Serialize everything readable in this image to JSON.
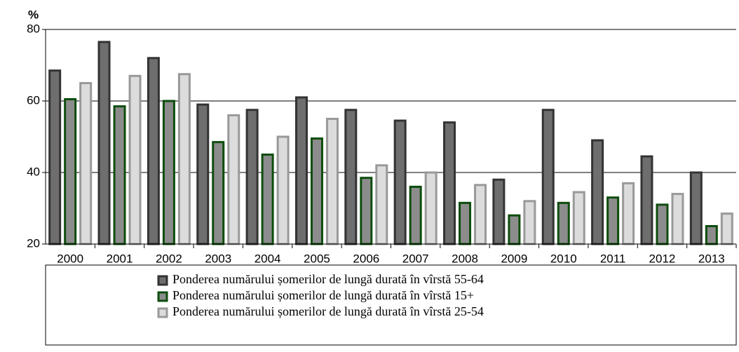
{
  "chart_data": {
    "type": "bar",
    "y_label": "%",
    "categories": [
      "2000",
      "2001",
      "2002",
      "2003",
      "2004",
      "2005",
      "2006",
      "2007",
      "2008",
      "2009",
      "2010",
      "2011",
      "2012",
      "2013"
    ],
    "series": [
      {
        "name": "Ponderea numărului șomerilor de lungă durată în vîrstă 55-64",
        "color": "#6e6e6e",
        "edge": "#333333",
        "values": [
          68.5,
          76.5,
          72,
          59,
          57.5,
          61,
          57.5,
          54.5,
          54,
          38,
          57.5,
          49,
          44.5,
          40
        ]
      },
      {
        "name": "Ponderea numărului șomerilor de lungă durată în vîrstă 15+",
        "color": "#8c8c8c",
        "edge": "#0d4d0d",
        "values": [
          60.5,
          58.5,
          60,
          48.5,
          45,
          49.5,
          38.5,
          36,
          31.5,
          28,
          31.5,
          33,
          31,
          25
        ]
      },
      {
        "name": "Ponderea numărului șomerilor de lungă durată în vîrstă 25-54",
        "color": "#dcdcdc",
        "edge": "#999999",
        "values": [
          65,
          67,
          67.5,
          56,
          50,
          55,
          42,
          40,
          36.5,
          32,
          34.5,
          37,
          34,
          28.5
        ]
      }
    ],
    "ylim": [
      20,
      80
    ],
    "yticks": [
      20,
      40,
      60,
      80
    ],
    "grid": true
  }
}
